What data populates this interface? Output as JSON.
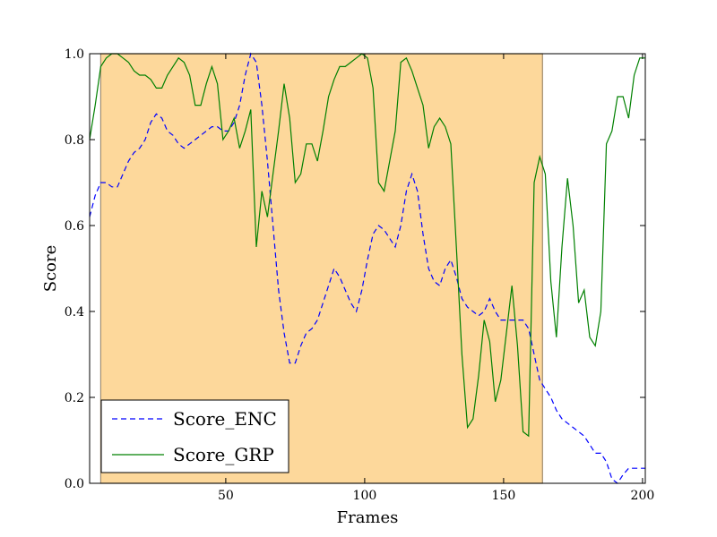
{
  "chart_data": {
    "type": "line",
    "title": "",
    "xlabel": "Frames",
    "ylabel": "Score",
    "xlim": [
      1,
      201
    ],
    "ylim": [
      0.0,
      1.0
    ],
    "xticks": [
      50,
      100,
      150,
      200
    ],
    "xtick_labels": [
      "50",
      "100",
      "150",
      "200"
    ],
    "yticks": [
      0.0,
      0.2,
      0.4,
      0.6,
      0.8,
      1.0
    ],
    "ytick_labels": [
      "0.0",
      "0.2",
      "0.4",
      "0.6",
      "0.8",
      "1.0"
    ],
    "grid": false,
    "legend_position": "lower-left",
    "highlight_span": {
      "x_start": 5,
      "x_end": 164,
      "color": "#fdd89b"
    },
    "series": [
      {
        "name": "Score_ENC",
        "color": "#0000ff",
        "style": "dashed",
        "points": [
          [
            1,
            0.62
          ],
          [
            3,
            0.67
          ],
          [
            5,
            0.7
          ],
          [
            7,
            0.7
          ],
          [
            9,
            0.69
          ],
          [
            11,
            0.69
          ],
          [
            13,
            0.72
          ],
          [
            15,
            0.75
          ],
          [
            17,
            0.77
          ],
          [
            19,
            0.78
          ],
          [
            21,
            0.8
          ],
          [
            23,
            0.84
          ],
          [
            25,
            0.86
          ],
          [
            27,
            0.85
          ],
          [
            29,
            0.82
          ],
          [
            31,
            0.81
          ],
          [
            33,
            0.79
          ],
          [
            35,
            0.78
          ],
          [
            37,
            0.79
          ],
          [
            39,
            0.8
          ],
          [
            41,
            0.81
          ],
          [
            43,
            0.82
          ],
          [
            45,
            0.83
          ],
          [
            47,
            0.83
          ],
          [
            49,
            0.82
          ],
          [
            51,
            0.82
          ],
          [
            53,
            0.84
          ],
          [
            55,
            0.88
          ],
          [
            57,
            0.95
          ],
          [
            59,
            1.0
          ],
          [
            61,
            0.98
          ],
          [
            63,
            0.88
          ],
          [
            65,
            0.75
          ],
          [
            67,
            0.6
          ],
          [
            69,
            0.45
          ],
          [
            71,
            0.35
          ],
          [
            73,
            0.28
          ],
          [
            75,
            0.28
          ],
          [
            77,
            0.32
          ],
          [
            79,
            0.35
          ],
          [
            81,
            0.36
          ],
          [
            83,
            0.38
          ],
          [
            85,
            0.42
          ],
          [
            87,
            0.46
          ],
          [
            89,
            0.5
          ],
          [
            91,
            0.48
          ],
          [
            93,
            0.45
          ],
          [
            95,
            0.42
          ],
          [
            97,
            0.4
          ],
          [
            99,
            0.45
          ],
          [
            101,
            0.52
          ],
          [
            103,
            0.58
          ],
          [
            105,
            0.6
          ],
          [
            107,
            0.59
          ],
          [
            109,
            0.57
          ],
          [
            111,
            0.55
          ],
          [
            113,
            0.6
          ],
          [
            115,
            0.68
          ],
          [
            117,
            0.72
          ],
          [
            119,
            0.68
          ],
          [
            121,
            0.58
          ],
          [
            123,
            0.5
          ],
          [
            125,
            0.47
          ],
          [
            127,
            0.46
          ],
          [
            129,
            0.5
          ],
          [
            131,
            0.52
          ],
          [
            133,
            0.48
          ],
          [
            135,
            0.43
          ],
          [
            137,
            0.41
          ],
          [
            139,
            0.4
          ],
          [
            141,
            0.39
          ],
          [
            143,
            0.4
          ],
          [
            145,
            0.43
          ],
          [
            147,
            0.4
          ],
          [
            149,
            0.38
          ],
          [
            151,
            0.38
          ],
          [
            153,
            0.38
          ],
          [
            155,
            0.38
          ],
          [
            157,
            0.38
          ],
          [
            159,
            0.36
          ],
          [
            161,
            0.3
          ],
          [
            163,
            0.24
          ],
          [
            165,
            0.22
          ],
          [
            167,
            0.2
          ],
          [
            169,
            0.17
          ],
          [
            171,
            0.15
          ],
          [
            173,
            0.14
          ],
          [
            175,
            0.13
          ],
          [
            177,
            0.12
          ],
          [
            179,
            0.11
          ],
          [
            181,
            0.09
          ],
          [
            183,
            0.07
          ],
          [
            185,
            0.07
          ],
          [
            187,
            0.05
          ],
          [
            189,
            0.01
          ],
          [
            191,
            0.0
          ],
          [
            193,
            0.02
          ],
          [
            195,
            0.035
          ],
          [
            197,
            0.035
          ],
          [
            199,
            0.035
          ],
          [
            201,
            0.035
          ]
        ]
      },
      {
        "name": "Score_GRP",
        "color": "#008000",
        "style": "solid",
        "points": [
          [
            1,
            0.8
          ],
          [
            3,
            0.88
          ],
          [
            5,
            0.97
          ],
          [
            7,
            0.99
          ],
          [
            9,
            1.0
          ],
          [
            11,
            1.0
          ],
          [
            13,
            0.99
          ],
          [
            15,
            0.98
          ],
          [
            17,
            0.96
          ],
          [
            19,
            0.95
          ],
          [
            21,
            0.95
          ],
          [
            23,
            0.94
          ],
          [
            25,
            0.92
          ],
          [
            27,
            0.92
          ],
          [
            29,
            0.95
          ],
          [
            31,
            0.97
          ],
          [
            33,
            0.99
          ],
          [
            35,
            0.98
          ],
          [
            37,
            0.95
          ],
          [
            39,
            0.88
          ],
          [
            41,
            0.88
          ],
          [
            43,
            0.93
          ],
          [
            45,
            0.97
          ],
          [
            47,
            0.93
          ],
          [
            49,
            0.8
          ],
          [
            51,
            0.82
          ],
          [
            53,
            0.85
          ],
          [
            55,
            0.78
          ],
          [
            57,
            0.82
          ],
          [
            59,
            0.87
          ],
          [
            61,
            0.55
          ],
          [
            63,
            0.68
          ],
          [
            65,
            0.62
          ],
          [
            67,
            0.72
          ],
          [
            69,
            0.82
          ],
          [
            71,
            0.93
          ],
          [
            73,
            0.85
          ],
          [
            75,
            0.7
          ],
          [
            77,
            0.72
          ],
          [
            79,
            0.79
          ],
          [
            81,
            0.79
          ],
          [
            83,
            0.75
          ],
          [
            85,
            0.82
          ],
          [
            87,
            0.9
          ],
          [
            89,
            0.94
          ],
          [
            91,
            0.97
          ],
          [
            93,
            0.97
          ],
          [
            95,
            0.98
          ],
          [
            97,
            0.99
          ],
          [
            99,
            1.0
          ],
          [
            101,
            0.99
          ],
          [
            103,
            0.92
          ],
          [
            105,
            0.7
          ],
          [
            107,
            0.68
          ],
          [
            109,
            0.75
          ],
          [
            111,
            0.82
          ],
          [
            113,
            0.98
          ],
          [
            115,
            0.99
          ],
          [
            117,
            0.96
          ],
          [
            119,
            0.92
          ],
          [
            121,
            0.88
          ],
          [
            123,
            0.78
          ],
          [
            125,
            0.83
          ],
          [
            127,
            0.85
          ],
          [
            129,
            0.83
          ],
          [
            131,
            0.79
          ],
          [
            133,
            0.55
          ],
          [
            135,
            0.3
          ],
          [
            137,
            0.13
          ],
          [
            139,
            0.15
          ],
          [
            141,
            0.25
          ],
          [
            143,
            0.38
          ],
          [
            145,
            0.33
          ],
          [
            147,
            0.19
          ],
          [
            149,
            0.24
          ],
          [
            151,
            0.35
          ],
          [
            153,
            0.46
          ],
          [
            155,
            0.32
          ],
          [
            157,
            0.12
          ],
          [
            159,
            0.11
          ],
          [
            161,
            0.7
          ],
          [
            163,
            0.76
          ],
          [
            165,
            0.72
          ],
          [
            167,
            0.47
          ],
          [
            169,
            0.34
          ],
          [
            171,
            0.55
          ],
          [
            173,
            0.71
          ],
          [
            175,
            0.6
          ],
          [
            177,
            0.42
          ],
          [
            179,
            0.45
          ],
          [
            181,
            0.34
          ],
          [
            183,
            0.32
          ],
          [
            185,
            0.4
          ],
          [
            187,
            0.79
          ],
          [
            189,
            0.82
          ],
          [
            191,
            0.9
          ],
          [
            193,
            0.9
          ],
          [
            195,
            0.85
          ],
          [
            197,
            0.95
          ],
          [
            199,
            0.99
          ],
          [
            201,
            0.99
          ]
        ]
      }
    ]
  }
}
